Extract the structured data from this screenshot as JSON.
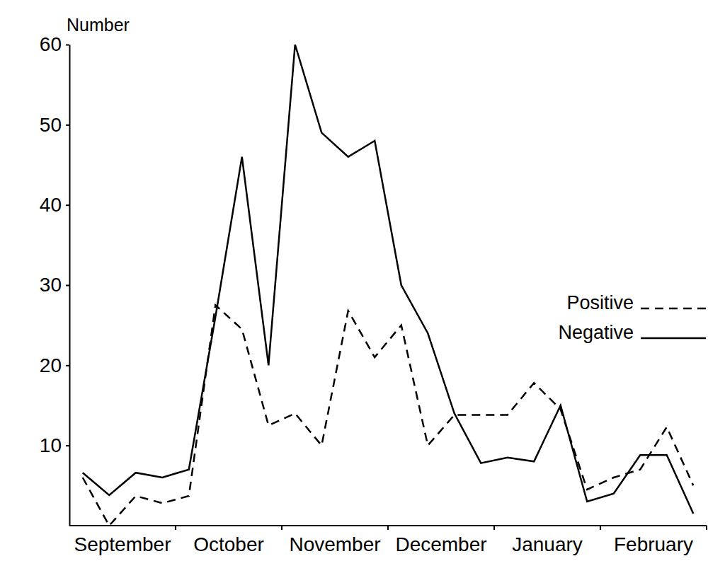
{
  "chart_data": {
    "type": "line",
    "y_label": "Number",
    "categories": [
      null,
      "September",
      null,
      null,
      null,
      "October",
      null,
      null,
      null,
      "November",
      null,
      null,
      null,
      "December",
      null,
      null,
      null,
      "January",
      null,
      null,
      null,
      "February",
      null,
      null
    ],
    "series": [
      {
        "name": "Positive",
        "color": "#000000",
        "line_style": "dashed",
        "values": [
          6,
          0,
          3.7,
          2.8,
          3.7,
          27.5,
          24.5,
          12.5,
          14,
          10,
          26.8,
          21,
          25,
          10,
          13.8,
          13.8,
          13.8,
          17.8,
          14.5,
          4.5,
          6,
          7,
          12.3,
          5
        ]
      },
      {
        "name": "Negative",
        "color": "#000000",
        "line_style": "solid",
        "values": [
          6.6,
          3.8,
          6.6,
          6,
          7,
          26,
          46,
          20,
          60,
          49,
          46,
          48,
          30,
          24,
          14,
          7.8,
          8.5,
          8,
          15,
          3,
          4,
          8.8,
          8.8,
          1.5
        ]
      }
    ],
    "ylim": [
      0,
      60
    ],
    "yticks": [
      10,
      20,
      30,
      40,
      50,
      60
    ],
    "grid": false,
    "legend": "right"
  }
}
